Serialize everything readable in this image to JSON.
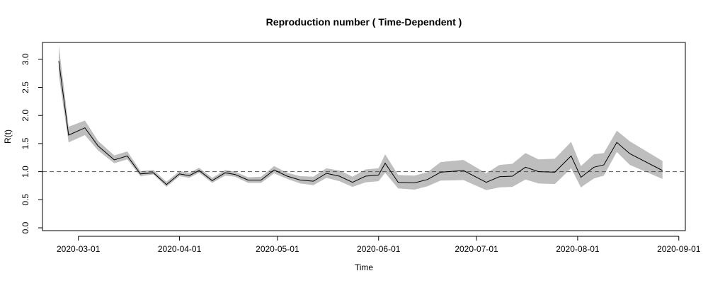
{
  "chart_data": {
    "type": "line",
    "title": "Reproduction number ( Time-Dependent )",
    "xlabel": "Time",
    "ylabel": "R(t)",
    "ylim": [
      -0.05,
      3.3
    ],
    "xlim": [
      "2020-02-19",
      "2020-09-03"
    ],
    "yticks": [
      0.0,
      0.5,
      1.0,
      1.5,
      2.0,
      2.5,
      3.0
    ],
    "ytick_labels": [
      "0.0",
      "0.5",
      "1.0",
      "1.5",
      "2.0",
      "2.5",
      "3.0"
    ],
    "xticks": [
      "2020-03-01",
      "2020-04-01",
      "2020-05-01",
      "2020-06-01",
      "2020-07-01",
      "2020-08-01",
      "2020-09-01"
    ],
    "xtick_labels": [
      "2020-03-01",
      "2020-04-01",
      "2020-05-01",
      "2020-06-01",
      "2020-07-01",
      "2020-08-01",
      "2020-09-01"
    ],
    "reference_line": {
      "y": 1.0,
      "style": "dashed"
    },
    "series": [
      {
        "name": "R(t)",
        "dates": [
          "2020-02-24",
          "2020-02-27",
          "2020-03-03",
          "2020-03-07",
          "2020-03-12",
          "2020-03-16",
          "2020-03-20",
          "2020-03-24",
          "2020-03-28",
          "2020-04-01",
          "2020-04-04",
          "2020-04-07",
          "2020-04-11",
          "2020-04-15",
          "2020-04-18",
          "2020-04-22",
          "2020-04-26",
          "2020-04-30",
          "2020-05-04",
          "2020-05-08",
          "2020-05-12",
          "2020-05-16",
          "2020-05-20",
          "2020-05-24",
          "2020-05-28",
          "2020-06-01",
          "2020-06-03",
          "2020-06-07",
          "2020-06-12",
          "2020-06-16",
          "2020-06-20",
          "2020-06-27",
          "2020-07-04",
          "2020-07-08",
          "2020-07-12",
          "2020-07-16",
          "2020-07-20",
          "2020-07-25",
          "2020-07-30",
          "2020-08-02",
          "2020-08-06",
          "2020-08-09",
          "2020-08-13",
          "2020-08-17",
          "2020-08-27"
        ],
        "values": [
          2.97,
          1.65,
          1.78,
          1.46,
          1.21,
          1.28,
          0.96,
          0.98,
          0.77,
          0.96,
          0.93,
          1.02,
          0.84,
          0.98,
          0.95,
          0.85,
          0.85,
          1.03,
          0.92,
          0.85,
          0.83,
          0.97,
          0.92,
          0.81,
          0.92,
          0.94,
          1.15,
          0.81,
          0.8,
          0.86,
          0.99,
          1.02,
          0.81,
          0.91,
          0.92,
          1.08,
          1.0,
          0.99,
          1.28,
          0.9,
          1.08,
          1.12,
          1.52,
          1.32,
          1.02
        ],
        "lower": [
          2.72,
          1.52,
          1.65,
          1.38,
          1.15,
          1.22,
          0.92,
          0.95,
          0.73,
          0.92,
          0.89,
          0.98,
          0.8,
          0.93,
          0.91,
          0.8,
          0.8,
          0.97,
          0.87,
          0.79,
          0.76,
          0.89,
          0.83,
          0.73,
          0.81,
          0.83,
          0.98,
          0.7,
          0.68,
          0.74,
          0.84,
          0.85,
          0.67,
          0.72,
          0.73,
          0.86,
          0.79,
          0.78,
          1.06,
          0.72,
          0.88,
          0.93,
          1.35,
          1.12,
          0.87
        ],
        "upper": [
          3.25,
          1.8,
          1.91,
          1.55,
          1.29,
          1.36,
          1.01,
          1.03,
          0.82,
          1.01,
          0.98,
          1.07,
          0.89,
          1.03,
          1.0,
          0.9,
          0.91,
          1.1,
          0.98,
          0.92,
          0.91,
          1.06,
          1.02,
          0.91,
          1.04,
          1.06,
          1.31,
          0.94,
          0.93,
          0.99,
          1.17,
          1.21,
          0.97,
          1.12,
          1.14,
          1.33,
          1.22,
          1.23,
          1.53,
          1.1,
          1.31,
          1.33,
          1.73,
          1.54,
          1.19
        ]
      }
    ]
  }
}
